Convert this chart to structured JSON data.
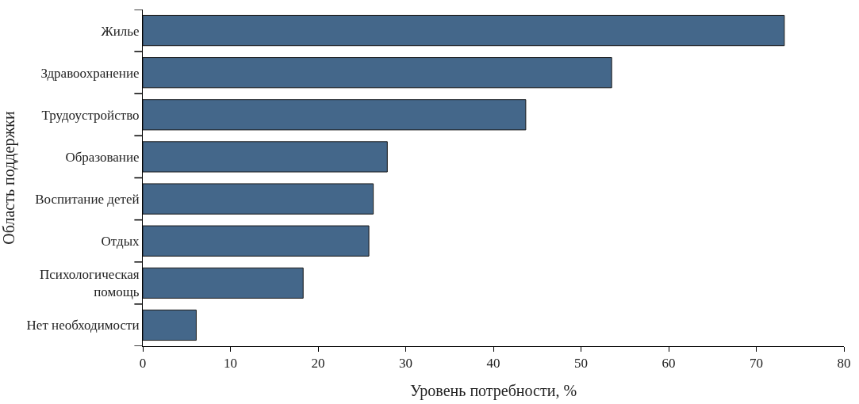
{
  "chart_data": {
    "type": "bar",
    "orientation": "horizontal",
    "categories": [
      "Жилье",
      "Здравоохранение",
      "Трудоустройство",
      "Образование",
      "Воспитание детей",
      "Отдых",
      "Психологическая\nпомощь",
      "Нет необходимости"
    ],
    "values": [
      73.2,
      53.5,
      43.7,
      27.9,
      26.3,
      25.8,
      18.3,
      6.1
    ],
    "color": "#44678a",
    "xlabel": "Уровень потребности, %",
    "ylabel": "Область поддержки",
    "xlim": [
      0,
      80
    ],
    "xticks": [
      0,
      10,
      20,
      30,
      40,
      50,
      60,
      70,
      80
    ],
    "legend": false
  }
}
